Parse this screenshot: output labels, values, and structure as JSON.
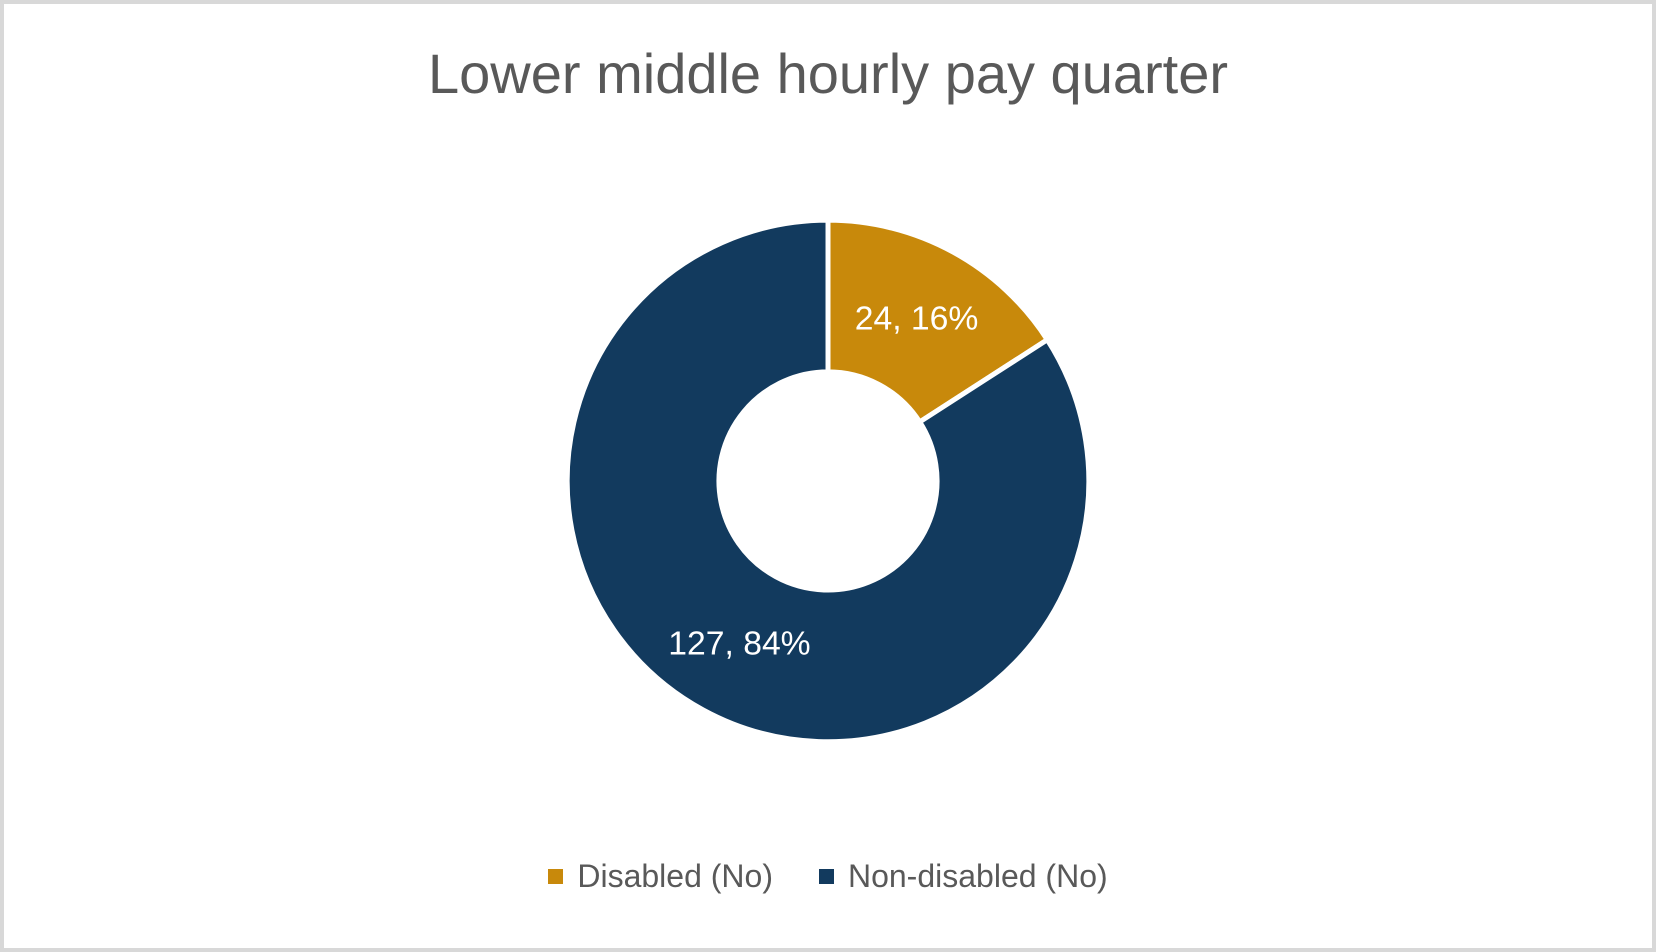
{
  "title": {
    "text": "Lower middle hourly pay quarter",
    "color": "#595959"
  },
  "chart_data": {
    "type": "pie",
    "subtype": "donut",
    "title": "Lower middle hourly pay quarter",
    "categories": [
      "Disabled (No)",
      "Non-disabled (No)"
    ],
    "values": [
      24,
      127
    ],
    "total": 151,
    "series": [
      {
        "name": "Disabled (No)",
        "value": 24,
        "pct": 16,
        "label": "24, 16%",
        "color": "#C8890B"
      },
      {
        "name": "Non-disabled (No)",
        "value": 127,
        "pct": 84,
        "label": "127, 84%",
        "color": "#123A5E"
      }
    ],
    "start_angle_deg": 0,
    "direction": "clockwise",
    "inner_radius_ratio": 0.42,
    "slice_separator_color": "#ffffff",
    "data_label_format": "value, percent",
    "data_label_color": "#ffffff",
    "legend_position": "bottom"
  },
  "legend": {
    "items": [
      {
        "label": "Disabled (No)",
        "color": "#C8890B"
      },
      {
        "label": "Non-disabled (No)",
        "color": "#123A5E"
      }
    ]
  },
  "frame": {
    "border_color": "#D8D8D8",
    "background": "#ffffff"
  }
}
